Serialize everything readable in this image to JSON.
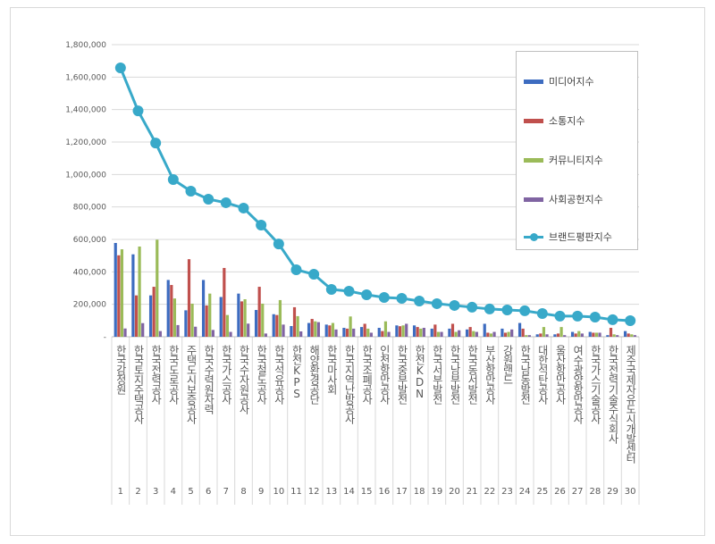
{
  "chart_data": {
    "type": "bar+line",
    "categories": [
      "한국감정원",
      "한국토지주택공사",
      "한국전력공사",
      "한국도로공사",
      "주택도시보증공사",
      "한국수력원자력",
      "한국가스공사",
      "한국수자원공사",
      "한국철도공사",
      "한국석유공사",
      "한전KPS",
      "해양환경공단",
      "한국마사회",
      "한국지역난방공사",
      "한국조폐공사",
      "인천항만공사",
      "한국중부발전",
      "한전KDN",
      "한국서부발전",
      "한국남부발전",
      "한국동서발전",
      "부산항만공사",
      "강원랜드",
      "한국남동발전",
      "대한석탄공사",
      "울산항만공사",
      "여수광양항만공사",
      "한국가스기술공사",
      "한국전력기술주식회사",
      "제주국제자유도시개발센터"
    ],
    "ranks": [
      "1",
      "2",
      "3",
      "4",
      "5",
      "6",
      "7",
      "8",
      "9",
      "10",
      "11",
      "12",
      "13",
      "14",
      "15",
      "16",
      "17",
      "18",
      "19",
      "20",
      "21",
      "22",
      "23",
      "24",
      "25",
      "26",
      "27",
      "28",
      "29",
      "30"
    ],
    "yticks": [
      "-",
      "200,000",
      "400,000",
      "600,000",
      "800,000",
      "1,000,000",
      "1,200,000",
      "1,400,000",
      "1,600,000",
      "1,800,000"
    ],
    "ylim": [
      0,
      1800000
    ],
    "grid": true,
    "legend_position": "right",
    "series": [
      {
        "name": "미디어지수",
        "type": "bar",
        "color": "#3d6cc0",
        "values": [
          578000,
          508000,
          255000,
          350000,
          163000,
          350000,
          245000,
          266000,
          165000,
          139000,
          66000,
          85000,
          75000,
          55000,
          60000,
          55000,
          70000,
          70000,
          50000,
          50000,
          45000,
          80000,
          50000,
          85000,
          15000,
          15000,
          30000,
          30000,
          10000,
          35000
        ]
      },
      {
        "name": "소통지수",
        "type": "bar",
        "color": "#c0504d",
        "values": [
          502000,
          255000,
          308000,
          319000,
          478000,
          193000,
          424000,
          218000,
          308000,
          134000,
          182000,
          110000,
          70000,
          50000,
          80000,
          35000,
          65000,
          60000,
          75000,
          80000,
          60000,
          25000,
          25000,
          50000,
          20000,
          20000,
          20000,
          25000,
          55000,
          20000
        ]
      },
      {
        "name": "커뮤니티지수",
        "type": "bar",
        "color": "#9bbb59",
        "values": [
          539000,
          556000,
          598000,
          236000,
          204000,
          266000,
          134000,
          231000,
          204000,
          226000,
          127000,
          95000,
          85000,
          125000,
          50000,
          95000,
          70000,
          50000,
          30000,
          30000,
          35000,
          20000,
          30000,
          10000,
          60000,
          60000,
          35000,
          25000,
          15000,
          15000
        ]
      },
      {
        "name": "사회공헌지수",
        "type": "bar",
        "color": "#8064a2",
        "values": [
          51000,
          84000,
          35000,
          72000,
          62000,
          42000,
          30000,
          81000,
          20000,
          75000,
          33000,
          90000,
          45000,
          50000,
          25000,
          30000,
          80000,
          55000,
          30000,
          40000,
          30000,
          30000,
          45000,
          10000,
          15000,
          10000,
          20000,
          25000,
          10000,
          10000
        ]
      },
      {
        "name": "브랜드평판지수",
        "type": "line",
        "color": "#38a9c9",
        "values": [
          1657000,
          1392000,
          1194000,
          969000,
          897000,
          848000,
          826000,
          793000,
          688000,
          572000,
          413000,
          385000,
          292000,
          281000,
          259000,
          242000,
          237000,
          220000,
          204000,
          193000,
          182000,
          171000,
          165000,
          160000,
          143000,
          127000,
          127000,
          121000,
          105000,
          99000
        ]
      }
    ]
  }
}
